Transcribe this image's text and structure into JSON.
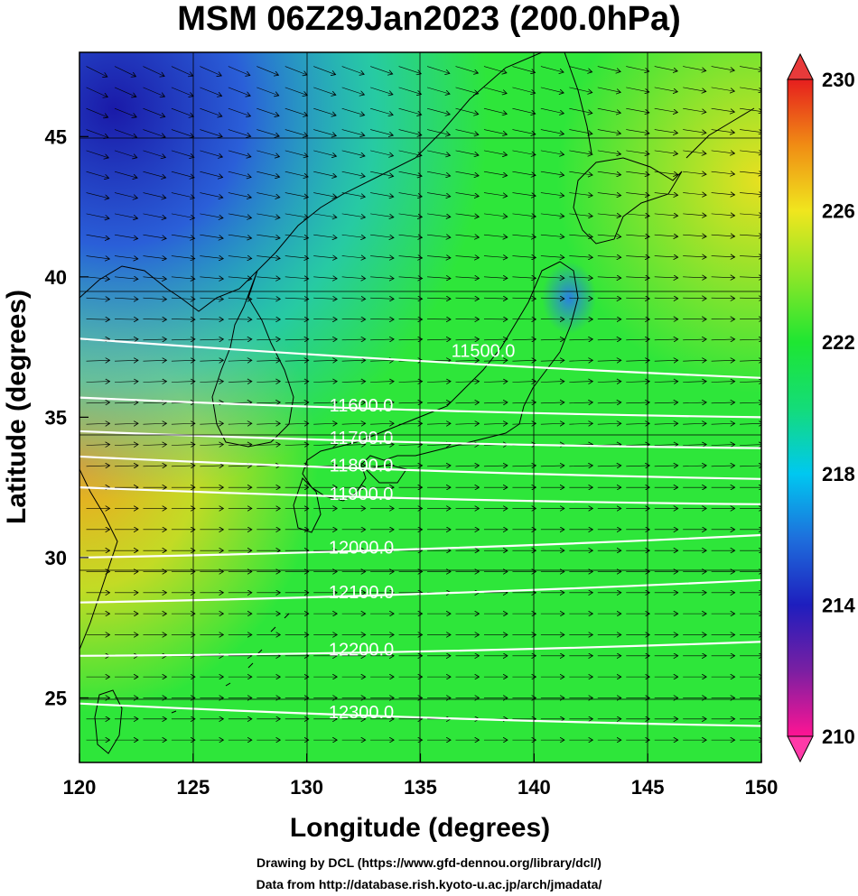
{
  "title": "MSM 06Z29Jan2023 (200.0hPa)",
  "map": {
    "lon_range": [
      120,
      150
    ],
    "lat_range": [
      22.7,
      48
    ],
    "x_ticks": [
      120,
      125,
      130,
      135,
      140,
      145,
      150
    ],
    "y_ticks": [
      25,
      30,
      35,
      40,
      45
    ],
    "xlabel": "Longitude (degrees)",
    "ylabel": "Latitude  (degrees)",
    "grid": true,
    "field": "temperature shading with wind vectors and height contours"
  },
  "colorbar": {
    "min": 210,
    "max": 230,
    "ticks": [
      "230",
      "226",
      "222",
      "218",
      "214",
      "210"
    ],
    "colors": [
      "#ff1493",
      "#7a1fa2",
      "#1e1ebe",
      "#1e6edc",
      "#00c8f0",
      "#14dc78",
      "#1ee632",
      "#8ce628",
      "#f0e61e",
      "#f08c14",
      "#e61e1e"
    ]
  },
  "contours": [
    {
      "label": "11500.0",
      "lat_left": 37.8,
      "lat_right": 36.4
    },
    {
      "label": "11600.0",
      "lat_left": 35.7,
      "lat_right": 35.0
    },
    {
      "label": "11700.0",
      "lat_left": 34.5,
      "lat_right": 33.9
    },
    {
      "label": "11800.0",
      "lat_left": 33.6,
      "lat_right": 32.8
    },
    {
      "label": "11900.0",
      "lat_left": 32.5,
      "lat_right": 31.9
    },
    {
      "label": "12000.0",
      "lat_left": 30.0,
      "lat_right": 30.8
    },
    {
      "label": "12100.0",
      "lat_left": 28.4,
      "lat_right": 29.2
    },
    {
      "label": "12200.0",
      "lat_left": 26.5,
      "lat_right": 27.0
    },
    {
      "label": "12300.0",
      "lat_left": 24.8,
      "lat_right": 24.0
    }
  ],
  "credits": [
    "Drawing by DCL (https://www.gfd-dennou.org/library/dcl/)",
    "Data from http://database.rish.kyoto-u.ac.jp/arch/jmadata/"
  ]
}
